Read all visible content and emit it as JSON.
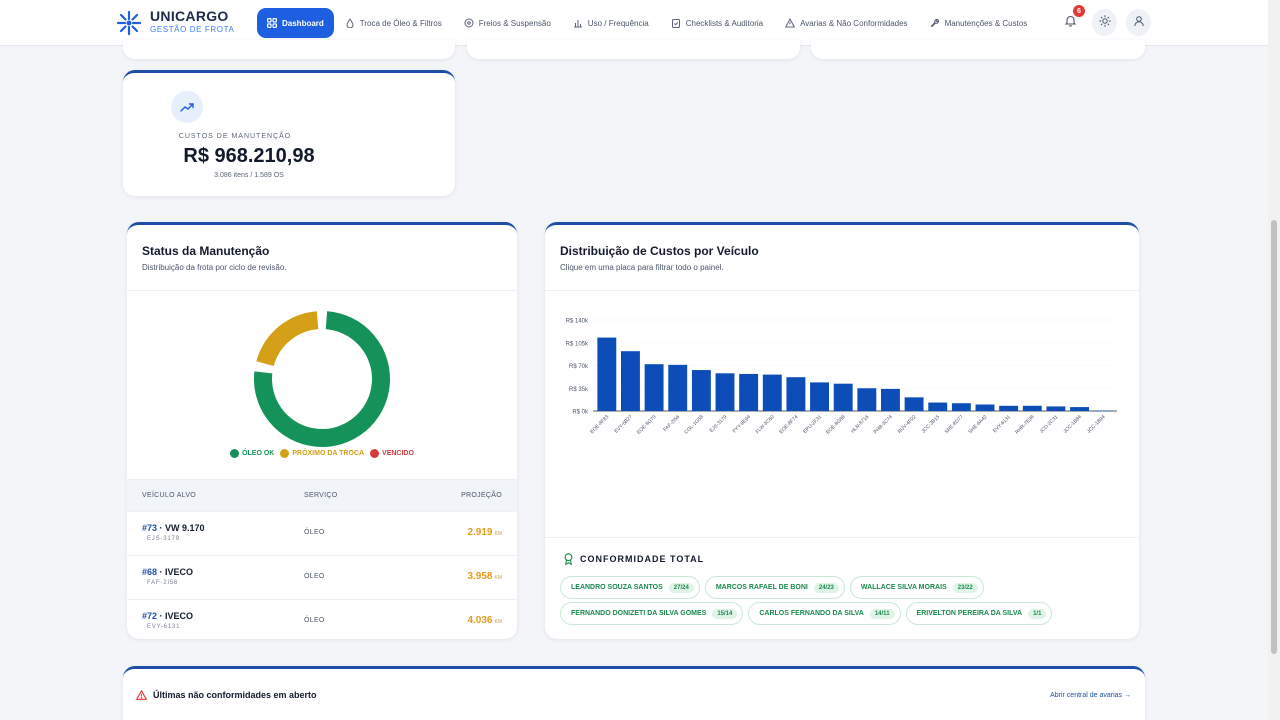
{
  "brand": {
    "name": "UNICARGO",
    "subtitle": "GESTÃO DE FROTA"
  },
  "nav": [
    {
      "label": "Dashboard",
      "icon": "grid-icon",
      "active": true
    },
    {
      "label": "Troca de Óleo & Filtros",
      "icon": "oil-drop-icon"
    },
    {
      "label": "Freios & Suspensão",
      "icon": "disc-icon"
    },
    {
      "label": "Uso / Frequência",
      "icon": "bar-chart-icon"
    },
    {
      "label": "Checklists & Auditoria",
      "icon": "clipboard-icon"
    },
    {
      "label": "Avarias & Não Conformidades",
      "icon": "warning-icon"
    },
    {
      "label": "Manutenções & Custos",
      "icon": "wrench-icon"
    }
  ],
  "header": {
    "notification_count": "6"
  },
  "kpi": {
    "label": "CUSTOS DE MANUTENÇÃO",
    "value": "R$ 968.210,98",
    "sub": "3.086 itens / 1.589 OS"
  },
  "status": {
    "title": "Status da Manutenção",
    "subtitle": "Distribuição da frota por ciclo de revisão.",
    "legend": [
      {
        "label": "ÓLEO OK",
        "color": "#15925a"
      },
      {
        "label": "PRÓXIMO DA TROCA",
        "color": "#d4a017"
      },
      {
        "label": "VENCIDO",
        "color": "#d43c3c"
      }
    ],
    "table": {
      "headers": {
        "vehicle": "VEÍCULO ALVO",
        "service": "SERVIÇO",
        "projection": "PROJEÇÃO"
      },
      "rows": [
        {
          "num": "#73",
          "model": " · VW 9.170",
          "plate": "EJS-3179",
          "service": "ÓLEO",
          "projection": "2.919",
          "unit": "KM"
        },
        {
          "num": "#68",
          "model": " · IVECO",
          "plate": "FAF-2I56",
          "service": "ÓLEO",
          "projection": "3.958",
          "unit": "KM"
        },
        {
          "num": "#72",
          "model": " · IVECO",
          "plate": "EVY-6131",
          "service": "ÓLEO",
          "projection": "4.036",
          "unit": "KM"
        }
      ]
    }
  },
  "distribution": {
    "title": "Distribuição de Custos por Veículo",
    "subtitle": "Clique em uma placa para filtrar todo o painel."
  },
  "conformity": {
    "title": "CONFORMIDADE TOTAL",
    "rows": [
      [
        {
          "name": "LEANDRO SOUZA SANTOS",
          "count": "27/24"
        },
        {
          "name": "MARCOS RAFAEL DE BONI",
          "count": "24/23"
        },
        {
          "name": "WALLACE SILVA MORAIS",
          "count": "23/22"
        }
      ],
      [
        {
          "name": "FERNANDO DONIZETI DA SILVA GOMES",
          "count": "15/14"
        },
        {
          "name": "CARLOS FERNANDO DA SILVA",
          "count": "14/11"
        },
        {
          "name": "ERIVELTON PEREIRA DA SILVA",
          "count": "1/1"
        }
      ]
    ]
  },
  "bottom": {
    "title": "Últimas não conformidades em aberto",
    "link": "Abrir central de avarias →"
  },
  "chart_data": [
    {
      "type": "pie",
      "title": "Status da Manutenção",
      "categories": [
        "ÓLEO OK",
        "PRÓXIMO DA TROCA",
        "VENCIDO"
      ],
      "values": [
        78,
        22,
        0
      ],
      "colors": [
        "#15925a",
        "#d4a017",
        "#d43c3c"
      ],
      "donut": true
    },
    {
      "type": "bar",
      "title": "Distribuição de Custos por Veículo",
      "categories": [
        "EOE-8F83",
        "EVY-6B27",
        "EOE-8G79",
        "FAF-2I56",
        "CGL-1G58",
        "EJS-3179",
        "FYY-9E94",
        "FLW-3C60",
        "EOE-8F74",
        "EPU-2F31",
        "EOE-8G88",
        "HLN-8716",
        "PHB-3C74",
        "RUV-4F92",
        "JCC-3B15",
        "SRE-8D77",
        "SHE-6A42",
        "EVY-6131",
        "RHR-7E98",
        "JCD-2C31",
        "JCC-1B84",
        "JCC-1B94"
      ],
      "values": [
        113000,
        92000,
        72000,
        71000,
        63000,
        58000,
        57000,
        56000,
        52000,
        44000,
        42000,
        35000,
        34000,
        21000,
        13000,
        12000,
        10000,
        8000,
        8000,
        7000,
        6000,
        500
      ],
      "ylabel": "",
      "ylim": [
        0,
        140000
      ],
      "y_ticks": [
        "R$ 0k",
        "R$ 35k",
        "R$ 70k",
        "R$ 105k",
        "R$ 140k"
      ],
      "color": "#0c4db8",
      "grid": true
    }
  ]
}
